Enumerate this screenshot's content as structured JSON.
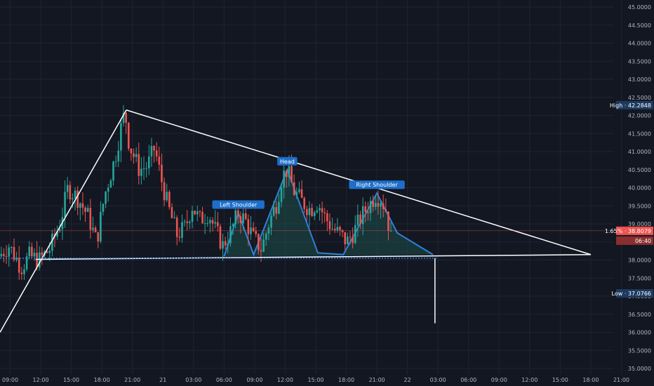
{
  "chart_data": {
    "type": "candlestick",
    "ylim": [
      35.0,
      45.0
    ],
    "y_ticks": [
      35.0,
      35.5,
      36.0,
      36.5,
      37.0,
      37.5,
      38.0,
      38.5,
      39.0,
      39.5,
      40.0,
      40.5,
      41.0,
      41.5,
      42.0,
      42.5,
      43.0,
      43.5,
      44.0,
      44.5,
      45.0
    ],
    "y_tick_labels": [
      "35.0000",
      "35.5000",
      "36.0000",
      "36.5000",
      "37.0000",
      "37.5000",
      "38.0000",
      "38.5000",
      "39.0000",
      "39.5000",
      "40.0000",
      "40.5000",
      "41.0000",
      "41.5000",
      "42.0000",
      "42.5000",
      "43.0000",
      "43.5000",
      "44.0000",
      "44.5000",
      "45.0000"
    ],
    "x_time_start_hours": 8,
    "x_time_end_hours": 70,
    "x_tick_labels": [
      {
        "t": 9,
        "label": "09:00"
      },
      {
        "t": 12,
        "label": "12:00"
      },
      {
        "t": 15,
        "label": "15:00"
      },
      {
        "t": 18,
        "label": "18:00"
      },
      {
        "t": 21,
        "label": "21:00"
      },
      {
        "t": 24,
        "label": "21"
      },
      {
        "t": 27,
        "label": "03:00"
      },
      {
        "t": 30,
        "label": "06:00"
      },
      {
        "t": 33,
        "label": "09:00"
      },
      {
        "t": 36,
        "label": "12:00"
      },
      {
        "t": 39,
        "label": "15:00"
      },
      {
        "t": 42,
        "label": "18:00"
      },
      {
        "t": 45,
        "label": "21:00"
      },
      {
        "t": 48,
        "label": "22"
      },
      {
        "t": 51,
        "label": "03:00"
      },
      {
        "t": 54,
        "label": "06:00"
      },
      {
        "t": 57,
        "label": "09:00"
      },
      {
        "t": 60,
        "label": "12:00"
      },
      {
        "t": 63,
        "label": "15:00"
      },
      {
        "t": 66,
        "label": "18:00"
      },
      {
        "t": 69,
        "label": "21:00"
      }
    ],
    "price_path": [
      [
        8.0,
        38.1
      ],
      [
        9.0,
        38.4
      ],
      [
        10.2,
        37.8
      ],
      [
        11.0,
        38.1
      ],
      [
        12.0,
        38.0
      ],
      [
        13.0,
        38.3
      ],
      [
        14.0,
        39.0
      ],
      [
        14.8,
        40.0
      ],
      [
        15.8,
        39.7
      ],
      [
        16.8,
        39.2
      ],
      [
        17.6,
        38.5
      ],
      [
        18.4,
        39.8
      ],
      [
        19.4,
        40.8
      ],
      [
        20.1,
        41.8
      ],
      [
        20.4,
        42.1
      ],
      [
        20.8,
        41.2
      ],
      [
        21.8,
        40.5
      ],
      [
        22.6,
        40.6
      ],
      [
        23.3,
        41.1
      ],
      [
        23.9,
        40.3
      ],
      [
        24.6,
        39.5
      ],
      [
        25.5,
        38.7
      ],
      [
        26.3,
        38.9
      ],
      [
        27.0,
        39.5
      ],
      [
        27.7,
        39.1
      ],
      [
        28.6,
        39.3
      ],
      [
        29.3,
        38.8
      ],
      [
        30.0,
        38.4
      ],
      [
        30.8,
        38.8
      ],
      [
        31.5,
        39.3
      ],
      [
        32.2,
        39.1
      ],
      [
        33.0,
        38.6
      ],
      [
        33.8,
        38.3
      ],
      [
        34.5,
        39.0
      ],
      [
        35.3,
        39.6
      ],
      [
        35.8,
        40.3
      ],
      [
        36.3,
        40.5
      ],
      [
        37.0,
        39.9
      ],
      [
        37.8,
        39.6
      ],
      [
        38.6,
        39.4
      ],
      [
        39.3,
        39.6
      ],
      [
        40.0,
        39.2
      ],
      [
        40.7,
        38.9
      ],
      [
        41.5,
        38.7
      ],
      [
        42.2,
        38.5
      ],
      [
        42.9,
        38.8
      ],
      [
        43.6,
        39.2
      ],
      [
        44.3,
        39.5
      ],
      [
        45.0,
        39.8
      ],
      [
        45.5,
        39.7
      ],
      [
        46.0,
        39.4
      ],
      [
        46.3,
        39.0
      ]
    ],
    "last_price": 38.8079,
    "high_price": 42.2848,
    "low_price": 37.0766,
    "price_label": "1.65% · 38.8079",
    "countdown_label": "06:40",
    "high_label": "High · 42.2848",
    "low_label": "Low · 37.0766",
    "dotted_level": 38.05,
    "last_price_line": 38.81,
    "annotations": [
      {
        "label": "Left Shoulder",
        "t": 31.4,
        "y": 39.3
      },
      {
        "label": "Head",
        "t": 36.2,
        "y": 40.5
      },
      {
        "label": "Right Shoulder",
        "t": 45.0,
        "y": 39.85
      }
    ],
    "trend_lines": [
      {
        "from": [
          8.0,
          36.0
        ],
        "to": [
          20.4,
          42.15
        ]
      },
      {
        "from": [
          20.4,
          42.15
        ],
        "to": [
          66.0,
          38.15
        ]
      },
      {
        "from": [
          11.5,
          38.02
        ],
        "to": [
          66.0,
          38.15
        ]
      },
      {
        "from": [
          50.7,
          38.05
        ],
        "to": [
          50.7,
          36.25
        ]
      }
    ],
    "hs_pattern": [
      [
        30.0,
        38.1
      ],
      [
        31.4,
        39.3
      ],
      [
        32.9,
        38.15
      ],
      [
        36.2,
        40.5
      ],
      [
        39.2,
        38.2
      ],
      [
        41.7,
        38.15
      ],
      [
        45.0,
        39.85
      ],
      [
        47.0,
        38.75
      ],
      [
        50.5,
        38.15
      ]
    ],
    "colors": {
      "background": "#131722",
      "grid": "#1f2433",
      "up": "#26a69a",
      "down": "#ef5350",
      "line": "#ffffff",
      "pattern": "#2f80d8",
      "pattern_fill": "#1e5a55",
      "label_bg": "#1d6fc9",
      "axis_text": "#b2b5be"
    }
  }
}
